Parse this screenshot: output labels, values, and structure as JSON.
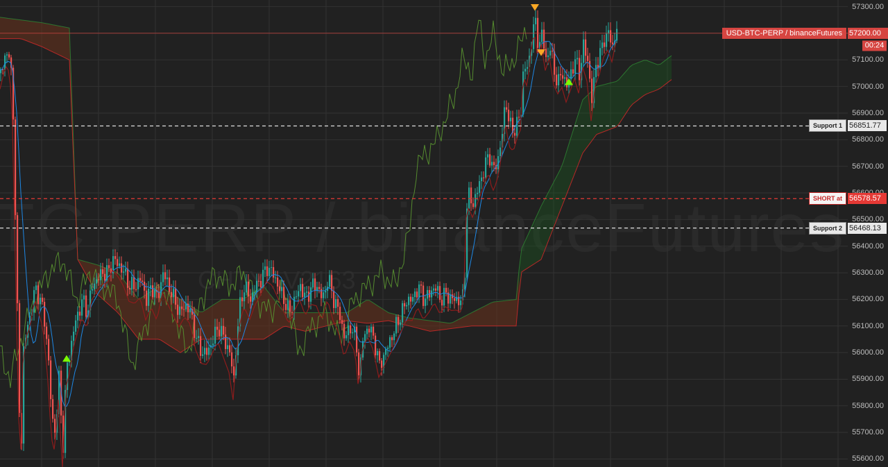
{
  "watermark": {
    "main": "TC PERP / binanceFutures, 1",
    "sub": "CHTY...V2163"
  },
  "symbol_label": "USD-BTC-PERP / binanceFutures",
  "countdown": "00:24",
  "colors": {
    "background": "#212121",
    "grid": "#333333",
    "up_candle": "#26a69a",
    "down_candle": "#ef5350",
    "kijun": "#8e1c1c",
    "tenkan": "#1e88e5",
    "chikou": "#558b2f",
    "cloud_bull": "#1b5e20",
    "cloud_bear": "#7f1d1d",
    "marker_buy": "#7CFC00",
    "marker_sell": "#f9a825",
    "short_line": "#e53935",
    "support_line": "#e0e0e0"
  },
  "chart_data": {
    "type": "candlestick",
    "ylim": [
      55570,
      57325
    ],
    "y_ticks": [
      "57300.00",
      "57200.00",
      "57100.00",
      "57000.00",
      "56900.00",
      "56800.00",
      "56700.00",
      "56600.00",
      "56500.00",
      "56400.00",
      "56300.00",
      "56200.00",
      "56100.00",
      "56000.00",
      "55900.00",
      "55800.00",
      "55700.00",
      "55600.00"
    ],
    "last_price": {
      "label": "57200.00",
      "value": 57200
    },
    "reference_lines": [
      {
        "label": "Support 1",
        "value_text": "56851.77",
        "value": 56851.77,
        "kind": "support"
      },
      {
        "label": "SHORT at",
        "value_text": "56578.57",
        "value": 56578.57,
        "kind": "short"
      },
      {
        "label": "Support 2",
        "value_text": "56468.13",
        "value": 56468.13,
        "kind": "support"
      }
    ],
    "price_anchors": [
      [
        0,
        57050
      ],
      [
        8,
        57130
      ],
      [
        14,
        57100
      ],
      [
        18,
        56900
      ],
      [
        22,
        56400
      ],
      [
        26,
        55900
      ],
      [
        29,
        55570
      ],
      [
        33,
        56000
      ],
      [
        38,
        56100
      ],
      [
        44,
        56150
      ],
      [
        50,
        56250
      ],
      [
        56,
        56200
      ],
      [
        62,
        56150
      ],
      [
        68,
        56000
      ],
      [
        74,
        55750
      ],
      [
        79,
        55700
      ],
      [
        84,
        55900
      ],
      [
        90,
        55650
      ],
      [
        95,
        55950
      ],
      [
        100,
        56000
      ],
      [
        106,
        56100
      ],
      [
        112,
        56150
      ],
      [
        118,
        56200
      ],
      [
        125,
        56150
      ],
      [
        132,
        56250
      ],
      [
        140,
        56280
      ],
      [
        147,
        56300
      ],
      [
        155,
        56300
      ],
      [
        162,
        56350
      ],
      [
        170,
        56330
      ],
      [
        178,
        56300
      ],
      [
        186,
        56250
      ],
      [
        194,
        56250
      ],
      [
        202,
        56280
      ],
      [
        210,
        56200
      ],
      [
        218,
        56250
      ],
      [
        226,
        56200
      ],
      [
        234,
        56300
      ],
      [
        242,
        56250
      ],
      [
        250,
        56200
      ],
      [
        258,
        56150
      ],
      [
        266,
        56180
      ],
      [
        274,
        56150
      ],
      [
        282,
        56050
      ],
      [
        290,
        56000
      ],
      [
        298,
        56000
      ],
      [
        306,
        56050
      ],
      [
        314,
        56100
      ],
      [
        322,
        56050
      ],
      [
        330,
        56000
      ],
      [
        336,
        55900
      ],
      [
        340,
        56050
      ],
      [
        346,
        56200
      ],
      [
        352,
        56250
      ],
      [
        360,
        56200
      ],
      [
        368,
        56250
      ],
      [
        376,
        56280
      ],
      [
        384,
        56320
      ],
      [
        392,
        56300
      ],
      [
        400,
        56250
      ],
      [
        408,
        56200
      ],
      [
        416,
        56150
      ],
      [
        424,
        56200
      ],
      [
        432,
        56250
      ],
      [
        440,
        56200
      ],
      [
        448,
        56250
      ],
      [
        456,
        56250
      ],
      [
        464,
        56200
      ],
      [
        472,
        56280
      ],
      [
        480,
        56200
      ],
      [
        488,
        56150
      ],
      [
        496,
        56050
      ],
      [
        504,
        56100
      ],
      [
        512,
        56050
      ],
      [
        517,
        55900
      ],
      [
        522,
        56050
      ],
      [
        530,
        56100
      ],
      [
        538,
        56050
      ],
      [
        546,
        55950
      ],
      [
        554,
        56000
      ],
      [
        562,
        56050
      ],
      [
        570,
        56100
      ],
      [
        578,
        56150
      ],
      [
        586,
        56200
      ],
      [
        594,
        56200
      ],
      [
        602,
        56250
      ],
      [
        610,
        56200
      ],
      [
        618,
        56220
      ],
      [
        626,
        56250
      ],
      [
        634,
        56200
      ],
      [
        642,
        56220
      ],
      [
        650,
        56200
      ],
      [
        658,
        56200
      ],
      [
        664,
        56190
      ],
      [
        668,
        56230
      ],
      [
        672,
        56550
      ],
      [
        676,
        56600
      ],
      [
        680,
        56550
      ],
      [
        686,
        56600
      ],
      [
        692,
        56650
      ],
      [
        698,
        56700
      ],
      [
        704,
        56750
      ],
      [
        710,
        56680
      ],
      [
        716,
        56720
      ],
      [
        722,
        56800
      ],
      [
        728,
        56950
      ],
      [
        734,
        56850
      ],
      [
        740,
        56830
      ],
      [
        746,
        56880
      ],
      [
        750,
        56900
      ],
      [
        754,
        57100
      ],
      [
        760,
        57050
      ],
      [
        766,
        57200
      ],
      [
        770,
        57250
      ],
      [
        775,
        57150
      ],
      [
        780,
        57200
      ],
      [
        786,
        57100
      ],
      [
        792,
        57150
      ],
      [
        798,
        57050
      ],
      [
        804,
        57020
      ],
      [
        810,
        57050
      ],
      [
        816,
        57000
      ],
      [
        822,
        57050
      ],
      [
        828,
        57100
      ],
      [
        834,
        57050
      ],
      [
        840,
        57150
      ],
      [
        846,
        57100
      ],
      [
        852,
        56950
      ],
      [
        858,
        57080
      ],
      [
        864,
        57120
      ],
      [
        870,
        57180
      ],
      [
        876,
        57200
      ],
      [
        882,
        57150
      ],
      [
        888,
        57220
      ]
    ],
    "cloud_anchors": [
      [
        0,
        57260,
        57180
      ],
      [
        30,
        57250,
        57180
      ],
      [
        60,
        57240,
        57150
      ],
      [
        100,
        57220,
        57100
      ],
      [
        112,
        56350,
        56350
      ],
      [
        140,
        56330,
        56220
      ],
      [
        170,
        56300,
        56150
      ],
      [
        200,
        56200,
        56050
      ],
      [
        230,
        56250,
        56050
      ],
      [
        260,
        56200,
        56000
      ],
      [
        290,
        56150,
        56050
      ],
      [
        320,
        56200,
        56050
      ],
      [
        350,
        56200,
        56050
      ],
      [
        380,
        56250,
        56050
      ],
      [
        410,
        56150,
        56100
      ],
      [
        440,
        56150,
        56080
      ],
      [
        470,
        56150,
        56100
      ],
      [
        500,
        56150,
        56120
      ],
      [
        530,
        56200,
        56110
      ],
      [
        560,
        56150,
        56120
      ],
      [
        590,
        56130,
        56100
      ],
      [
        620,
        56120,
        56080
      ],
      [
        650,
        56110,
        56090
      ],
      [
        680,
        56150,
        56100
      ],
      [
        710,
        56190,
        56100
      ],
      [
        745,
        56200,
        56100
      ],
      [
        750,
        56380,
        56300
      ],
      [
        780,
        56550,
        56350
      ],
      [
        810,
        56700,
        56550
      ],
      [
        840,
        56950,
        56750
      ],
      [
        860,
        57000,
        56820
      ],
      [
        890,
        57020,
        56850
      ],
      [
        910,
        57080,
        56930
      ],
      [
        930,
        57100,
        56970
      ],
      [
        950,
        57080,
        56990
      ],
      [
        970,
        57120,
        57030
      ]
    ],
    "chikou_anchors": [
      [
        0,
        56000
      ],
      [
        15,
        55900
      ],
      [
        30,
        56050
      ],
      [
        50,
        56200
      ],
      [
        70,
        56300
      ],
      [
        90,
        56350
      ],
      [
        110,
        56200
      ],
      [
        130,
        56300
      ],
      [
        150,
        56250
      ],
      [
        170,
        56200
      ],
      [
        190,
        55950
      ],
      [
        210,
        56100
      ],
      [
        230,
        56250
      ],
      [
        250,
        56150
      ],
      [
        270,
        56000
      ],
      [
        290,
        56200
      ],
      [
        310,
        56300
      ],
      [
        330,
        56250
      ],
      [
        350,
        56300
      ],
      [
        370,
        56200
      ],
      [
        390,
        56150
      ],
      [
        410,
        56250
      ],
      [
        430,
        56000
      ],
      [
        450,
        56100
      ],
      [
        470,
        56150
      ],
      [
        490,
        56050
      ],
      [
        510,
        56200
      ],
      [
        530,
        56250
      ],
      [
        550,
        56300
      ],
      [
        570,
        56250
      ],
      [
        590,
        56450
      ],
      [
        600,
        56700
      ],
      [
        615,
        56750
      ],
      [
        630,
        56800
      ],
      [
        645,
        56900
      ],
      [
        655,
        56950
      ],
      [
        665,
        57100
      ],
      [
        680,
        57050
      ],
      [
        690,
        57250
      ],
      [
        700,
        57100
      ],
      [
        712,
        57200
      ],
      [
        725,
        57050
      ],
      [
        740,
        57100
      ],
      [
        760,
        57220
      ]
    ]
  }
}
